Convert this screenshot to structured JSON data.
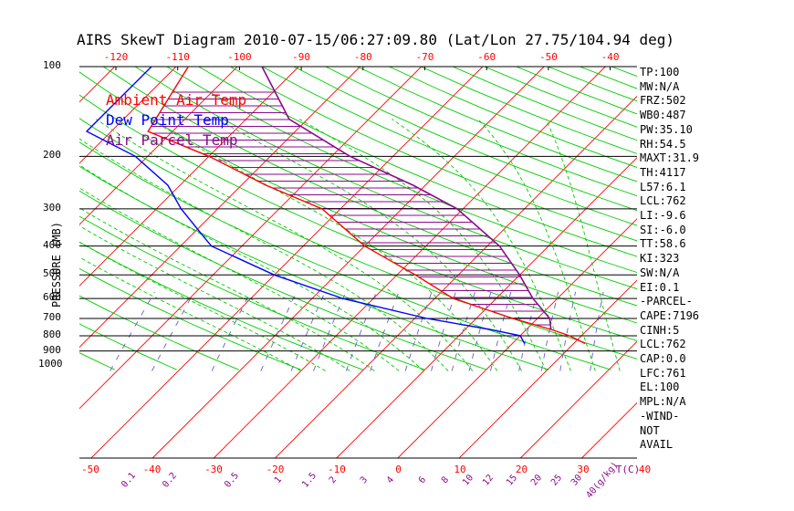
{
  "title": "AIRS SkewT Diagram 2010-07-15/06:27:09.80 (Lat/Lon 27.75/104.94 deg)",
  "legend": [
    {
      "label": "Ambient Air Temp",
      "color": "#ff0000"
    },
    {
      "label": "Dew Point Temp",
      "color": "#0000ff"
    },
    {
      "label": "Air Parcel Temp",
      "color": "#8b0a8b"
    }
  ],
  "ylabel": "PRESSURE (MB)",
  "indices": [
    "TP:100",
    "MW:N/A",
    "FRZ:502",
    "WB0:487",
    "PW:35.10",
    "RH:54.5",
    "MAXT:31.9",
    "TH:4117",
    "L57:6.1",
    "LCL:762",
    "LI:-9.6",
    "SI:-6.0",
    "TT:58.6",
    "KI:323",
    "SW:N/A",
    "EI:0.1",
    "-PARCEL-",
    "CAPE:7196",
    "CINH:5",
    "LCL:762",
    "CAP:0.0",
    "LFC:761",
    "EL:100",
    "MPL:N/A",
    "-WIND-",
    "NOT",
    "AVAIL"
  ],
  "chart_data": {
    "type": "line",
    "title": "AIRS SkewT Diagram 2010-07-15/06:27:09.80 (Lat/Lon 27.75/104.94 deg)",
    "ylabel": "PRESSURE (MB)",
    "xlabel": "T(C)",
    "pressure_ticks": [
      100,
      200,
      300,
      400,
      500,
      600,
      700,
      800,
      900,
      1000
    ],
    "pressure_lines": [
      100,
      200,
      300,
      400,
      500,
      600,
      700,
      800,
      900
    ],
    "top_temp_labels": [
      "-120",
      "-110",
      "-100",
      "-90",
      "-80",
      "-70",
      "-60",
      "-50",
      "-40"
    ],
    "bottom_temp_labels": [
      "-50",
      "-40",
      "-30",
      "-20",
      "-10",
      "0",
      "10",
      "20",
      "30",
      "40"
    ],
    "bottom_axis_label": "T(C)",
    "mixing_ratio_labels": [
      "0.1",
      "0.2",
      "0.5",
      "1",
      "1.5",
      "2",
      "3",
      "4",
      "6",
      "8",
      "10",
      "12",
      "15",
      "20",
      "25",
      "30",
      "40(g/kg)"
    ],
    "series": [
      {
        "name": "Ambient Air Temp",
        "color": "#ff0000",
        "points": [
          [
            100,
            -78
          ],
          [
            165,
            -74
          ],
          [
            200,
            -60
          ],
          [
            250,
            -46
          ],
          [
            300,
            -33
          ],
          [
            400,
            -20
          ],
          [
            500,
            -7
          ],
          [
            600,
            3
          ],
          [
            700,
            16
          ],
          [
            762,
            24
          ],
          [
            800,
            28
          ],
          [
            850,
            31.9
          ]
        ]
      },
      {
        "name": "Dew Point Temp",
        "color": "#0000ff",
        "points": [
          [
            100,
            -84
          ],
          [
            165,
            -84
          ],
          [
            200,
            -72
          ],
          [
            250,
            -62
          ],
          [
            300,
            -56
          ],
          [
            400,
            -45
          ],
          [
            500,
            -30
          ],
          [
            600,
            -15
          ],
          [
            700,
            2
          ],
          [
            762,
            14
          ],
          [
            800,
            20
          ],
          [
            850,
            22
          ]
        ]
      },
      {
        "name": "Air Parcel Temp",
        "color": "#8b0a8b",
        "points": [
          [
            100,
            -66
          ],
          [
            150,
            -53
          ],
          [
            200,
            -37
          ],
          [
            250,
            -22
          ],
          [
            300,
            -11
          ],
          [
            400,
            2
          ],
          [
            500,
            10
          ],
          [
            600,
            16
          ],
          [
            700,
            22
          ],
          [
            762,
            24
          ]
        ]
      }
    ]
  }
}
